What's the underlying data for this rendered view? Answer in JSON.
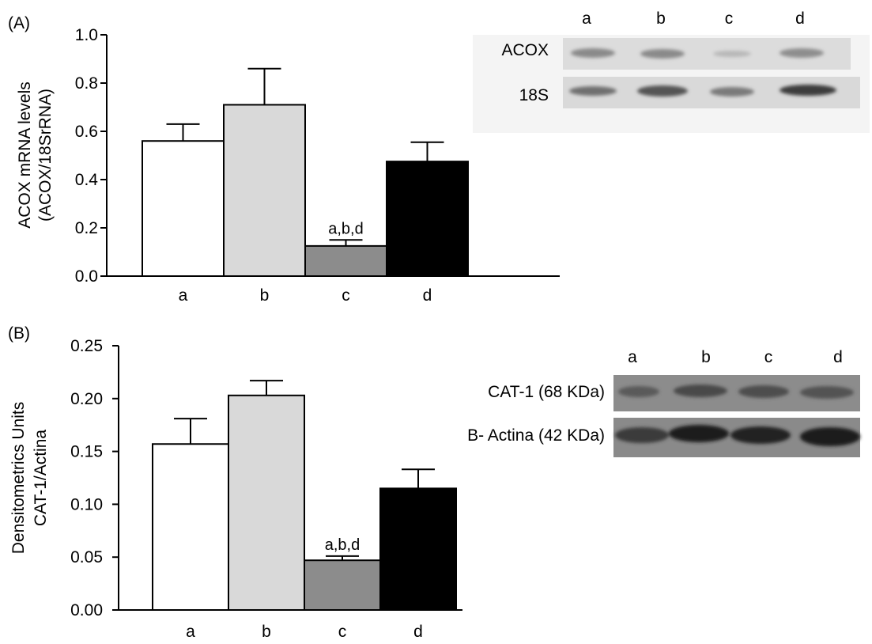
{
  "panels": [
    {
      "panel_label": "(A)",
      "blot": {
        "lanes": [
          "a",
          "b",
          "c",
          "d"
        ],
        "rows": [
          "ACOX",
          "18S"
        ]
      }
    },
    {
      "panel_label": "(B)",
      "blot": {
        "lanes": [
          "a",
          "b",
          "c",
          "d"
        ],
        "rows": [
          "CAT-1 (68 KDa)",
          "B- Actina (42 KDa)"
        ]
      }
    }
  ],
  "chart_data": [
    {
      "type": "bar",
      "categories": [
        "a",
        "b",
        "c",
        "d"
      ],
      "values": [
        0.56,
        0.71,
        0.125,
        0.475
      ],
      "errors": [
        0.07,
        0.15,
        0.025,
        0.08
      ],
      "ylabel_lines": [
        "ACOX mRNA levels",
        "(ACOX/18SrRNA)"
      ],
      "ylim": [
        0.0,
        1.0
      ],
      "yticks": [
        "0.0",
        "0.2",
        "0.4",
        "0.6",
        "0.8",
        "1.0"
      ],
      "bar_colors": [
        "#ffffff",
        "#d9d9d9",
        "#8c8c8c",
        "#000000"
      ],
      "annotation": {
        "category": "c",
        "text": "a,b,d"
      },
      "grid": false
    },
    {
      "type": "bar",
      "categories": [
        "a",
        "b",
        "c",
        "d"
      ],
      "values": [
        0.157,
        0.203,
        0.047,
        0.115
      ],
      "errors": [
        0.024,
        0.014,
        0.004,
        0.018
      ],
      "ylabel_lines": [
        "Densitometrics Units",
        "CAT-1/Actina"
      ],
      "ylim": [
        0.0,
        0.25
      ],
      "yticks": [
        "0.00",
        "0.05",
        "0.10",
        "0.15",
        "0.20",
        "0.25"
      ],
      "bar_colors": [
        "#ffffff",
        "#d9d9d9",
        "#8c8c8c",
        "#000000"
      ],
      "annotation": {
        "category": "c",
        "text": "a,b,d"
      },
      "grid": false
    }
  ]
}
